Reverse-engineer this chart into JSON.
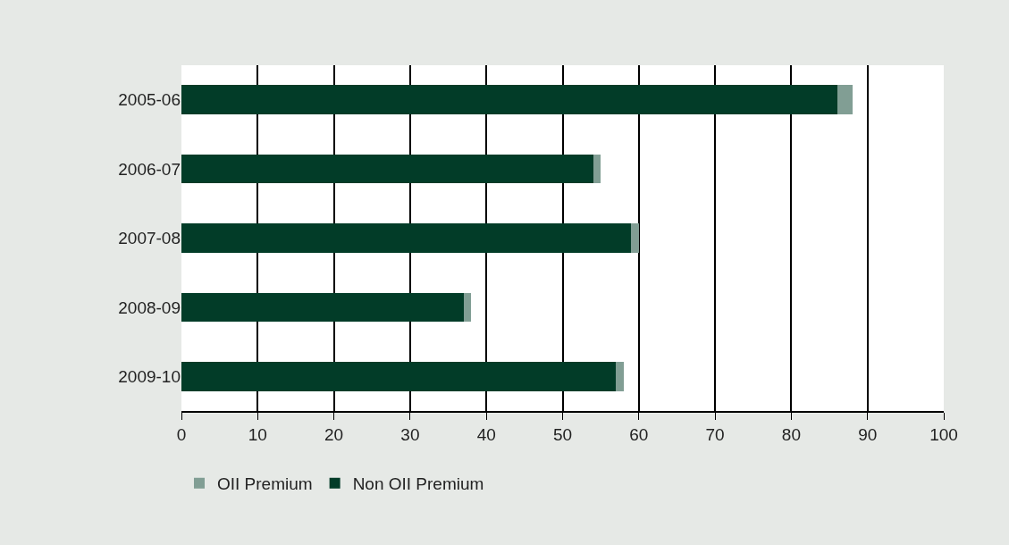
{
  "chart_data": {
    "type": "bar",
    "orientation": "horizontal",
    "stacked": true,
    "categories": [
      "2005-06",
      "2006-07",
      "2007-08",
      "2008-09",
      "2009-10"
    ],
    "series": [
      {
        "name": "Non OII Premium",
        "color": "#023c28",
        "values": [
          86,
          54,
          59,
          37,
          57
        ]
      },
      {
        "name": "OII Premium",
        "color": "#819e94",
        "values": [
          2,
          1,
          1,
          1,
          1
        ]
      }
    ],
    "xlim": [
      0,
      100
    ],
    "xticks": [
      0,
      10,
      20,
      30,
      40,
      50,
      60,
      70,
      80,
      90,
      100
    ],
    "grid": "x",
    "legend": "bottom left"
  }
}
